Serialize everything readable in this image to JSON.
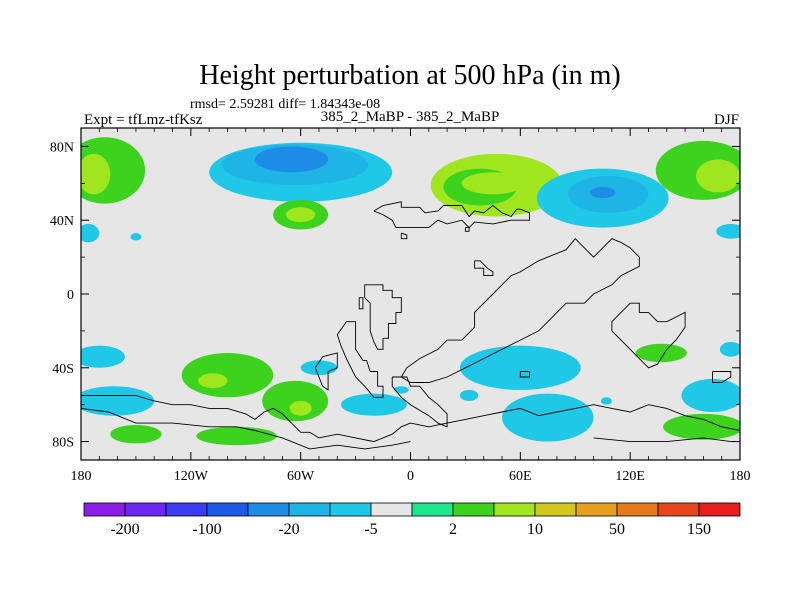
{
  "chart_data": {
    "type": "heatmap",
    "title": "Height perturbation at 500 hPa (in m)",
    "stats_line": "rmsd= 2.59281 diff= 1.84343e-08",
    "left_label": "Expt = tfLmz-tfKsz",
    "center_label": "385_2_MaBP - 385_2_MaBP",
    "right_label": "DJF",
    "xlim": [
      -180,
      180
    ],
    "ylim": [
      -90,
      90
    ],
    "x_ticks": [
      {
        "value": -180,
        "label": "180"
      },
      {
        "value": -120,
        "label": "120W"
      },
      {
        "value": -60,
        "label": "60W"
      },
      {
        "value": 0,
        "label": "0"
      },
      {
        "value": 60,
        "label": "60E"
      },
      {
        "value": 120,
        "label": "120E"
      },
      {
        "value": 180,
        "label": "180"
      }
    ],
    "y_ticks": [
      {
        "value": 80,
        "label": "80N"
      },
      {
        "value": 40,
        "label": "40N"
      },
      {
        "value": 0,
        "label": "0"
      },
      {
        "value": -40,
        "label": "40S"
      },
      {
        "value": -80,
        "label": "80S"
      }
    ],
    "colorbar": {
      "colors": [
        "#8a1ee6",
        "#6a28f0",
        "#3c3cf0",
        "#1e5ae6",
        "#1e8ce6",
        "#1eb4e6",
        "#1ec8e6",
        "#e6e6e6",
        "#1ee68c",
        "#3cd21e",
        "#a0e61e",
        "#d2c81e",
        "#e6a01e",
        "#e6781e",
        "#e6461e",
        "#e61e1e"
      ],
      "tick_labels": [
        "-200",
        "-100",
        "-20",
        "-5",
        "2",
        "10",
        "50",
        "150"
      ]
    },
    "neutral_range": [
      -2,
      2
    ],
    "regions": [
      {
        "level": 2,
        "lon": 47,
        "lat": 59,
        "rlon": 36,
        "rlat": 17
      },
      {
        "level": 1,
        "lon": 38,
        "lat": 58,
        "rlon": 20,
        "rlat": 10
      },
      {
        "level": 2,
        "lon": 45,
        "lat": 60,
        "rlon": 17,
        "rlat": 6
      },
      {
        "level": 1,
        "lon": -167,
        "lat": 67,
        "rlon": 22,
        "rlat": 18
      },
      {
        "level": 2,
        "lon": -173,
        "lat": 65,
        "rlon": 9,
        "rlat": 11
      },
      {
        "level": 1,
        "lon": 160,
        "lat": 67,
        "rlon": 26,
        "rlat": 16
      },
      {
        "level": 2,
        "lon": 168,
        "lat": 64,
        "rlon": 12,
        "rlat": 9
      },
      {
        "level": -1,
        "lon": -60,
        "lat": 66,
        "rlon": 50,
        "rlat": 16
      },
      {
        "level": -2,
        "lon": -63,
        "lat": 70,
        "rlon": 40,
        "rlat": 11
      },
      {
        "level": -3,
        "lon": -65,
        "lat": 73,
        "rlon": 20,
        "rlat": 7
      },
      {
        "level": 1,
        "lon": -60,
        "lat": 43,
        "rlon": 15,
        "rlat": 8
      },
      {
        "level": 2,
        "lon": -60,
        "lat": 43,
        "rlon": 8,
        "rlat": 4
      },
      {
        "level": -1,
        "lon": 105,
        "lat": 52,
        "rlon": 36,
        "rlat": 16
      },
      {
        "level": -2,
        "lon": 108,
        "lat": 54,
        "rlon": 22,
        "rlat": 10
      },
      {
        "level": -3,
        "lon": 105,
        "lat": 55,
        "rlon": 7,
        "rlat": 3
      },
      {
        "level": -1,
        "lon": 175,
        "lat": 34,
        "rlon": 8,
        "rlat": 4
      },
      {
        "level": -1,
        "lon": -176,
        "lat": 33,
        "rlon": 6,
        "rlat": 5
      },
      {
        "level": -1,
        "lon": -150,
        "lat": 31,
        "rlon": 3,
        "rlat": 2
      },
      {
        "level": -1,
        "lon": -170,
        "lat": -34,
        "rlon": 14,
        "rlat": 6
      },
      {
        "level": 1,
        "lon": -100,
        "lat": -44,
        "rlon": 25,
        "rlat": 12
      },
      {
        "level": 2,
        "lon": -108,
        "lat": -47,
        "rlon": 8,
        "rlat": 4
      },
      {
        "level": -1,
        "lon": -162,
        "lat": -58,
        "rlon": 22,
        "rlat": 8
      },
      {
        "level": 1,
        "lon": -63,
        "lat": -58,
        "rlon": 18,
        "rlat": 11
      },
      {
        "level": 2,
        "lon": -60,
        "lat": -62,
        "rlon": 6,
        "rlat": 4
      },
      {
        "level": 1,
        "lon": -150,
        "lat": -76,
        "rlon": 14,
        "rlat": 5
      },
      {
        "level": 1,
        "lon": -95,
        "lat": -77,
        "rlon": 22,
        "rlat": 5
      },
      {
        "level": -1,
        "lon": -20,
        "lat": -60,
        "rlon": 18,
        "rlat": 6
      },
      {
        "level": -1,
        "lon": -50,
        "lat": -40,
        "rlon": 10,
        "rlat": 4
      },
      {
        "level": -1,
        "lon": 60,
        "lat": -40,
        "rlon": 33,
        "rlat": 12
      },
      {
        "level": -1,
        "lon": 75,
        "lat": -67,
        "rlon": 25,
        "rlat": 13
      },
      {
        "level": 1,
        "lon": 137,
        "lat": -32,
        "rlon": 14,
        "rlat": 5
      },
      {
        "level": -1,
        "lon": 165,
        "lat": -55,
        "rlon": 17,
        "rlat": 9
      },
      {
        "level": 1,
        "lon": 160,
        "lat": -72,
        "rlon": 22,
        "rlat": 7
      },
      {
        "level": -1,
        "lon": 107,
        "lat": -58,
        "rlon": 3,
        "rlat": 2
      },
      {
        "level": -1,
        "lon": 175,
        "lat": -30,
        "rlon": 6,
        "rlat": 4
      },
      {
        "level": -1,
        "lon": 32,
        "lat": -55,
        "rlon": 5,
        "rlat": 3
      },
      {
        "level": -1,
        "lon": -5,
        "lat": -52,
        "rlon": 4,
        "rlat": 2
      }
    ],
    "coastlines": [
      [
        [
          -20,
          45
        ],
        [
          -15,
          48
        ],
        [
          -5,
          50
        ],
        [
          -5,
          47
        ],
        [
          5,
          47
        ],
        [
          8,
          44
        ],
        [
          15,
          45
        ],
        [
          18,
          48
        ],
        [
          28,
          48
        ],
        [
          32,
          42
        ],
        [
          35,
          45
        ],
        [
          40,
          44
        ],
        [
          45,
          48
        ],
        [
          50,
          44
        ],
        [
          55,
          42
        ],
        [
          58,
          46
        ],
        [
          60,
          46
        ],
        [
          65,
          44
        ],
        [
          65,
          40
        ],
        [
          55,
          40
        ],
        [
          45,
          38
        ],
        [
          35,
          39
        ],
        [
          32,
          36
        ],
        [
          28,
          40
        ],
        [
          20,
          38
        ],
        [
          15,
          40
        ],
        [
          10,
          36
        ],
        [
          -3,
          36
        ],
        [
          -8,
          36
        ],
        [
          -10,
          40
        ],
        [
          -15,
          43
        ],
        [
          -20,
          45
        ]
      ],
      [
        [
          -5,
          33
        ],
        [
          -5,
          30
        ],
        [
          -2,
          30
        ],
        [
          -2,
          32
        ],
        [
          -5,
          33
        ]
      ],
      [
        [
          30,
          36
        ],
        [
          32,
          36
        ],
        [
          32,
          34
        ],
        [
          30,
          34
        ],
        [
          30,
          36
        ]
      ],
      [
        [
          35,
          18
        ],
        [
          35,
          14
        ],
        [
          40,
          14
        ],
        [
          40,
          10
        ],
        [
          45,
          10
        ],
        [
          45,
          12
        ],
        [
          42,
          14
        ],
        [
          38,
          18
        ],
        [
          35,
          18
        ]
      ],
      [
        [
          -22,
          5
        ],
        [
          -15,
          5
        ],
        [
          -15,
          2
        ],
        [
          -10,
          2
        ],
        [
          -10,
          -2
        ],
        [
          -5,
          -2
        ],
        [
          -5,
          -10
        ],
        [
          -8,
          -10
        ],
        [
          -8,
          -16
        ],
        [
          -12,
          -16
        ],
        [
          -12,
          -24
        ],
        [
          -15,
          -24
        ],
        [
          -15,
          -30
        ],
        [
          -18,
          -30
        ],
        [
          -20,
          -26
        ],
        [
          -22,
          -20
        ],
        [
          -22,
          -5
        ],
        [
          -25,
          -2
        ],
        [
          -25,
          5
        ],
        [
          -22,
          5
        ]
      ],
      [
        [
          -28,
          -2
        ],
        [
          -26,
          -2
        ],
        [
          -26,
          -8
        ],
        [
          -28,
          -8
        ],
        [
          -28,
          -2
        ]
      ],
      [
        [
          -35,
          -15
        ],
        [
          -30,
          -15
        ],
        [
          -30,
          -30
        ],
        [
          -26,
          -36
        ],
        [
          -24,
          -36
        ],
        [
          -22,
          -42
        ],
        [
          -18,
          -42
        ],
        [
          -18,
          -50
        ],
        [
          -15,
          -50
        ],
        [
          -15,
          -56
        ],
        [
          -20,
          -56
        ],
        [
          -25,
          -50
        ],
        [
          -30,
          -45
        ],
        [
          -35,
          -35
        ],
        [
          -38,
          -28
        ],
        [
          -40,
          -22
        ],
        [
          -35,
          -15
        ]
      ],
      [
        [
          -48,
          -34
        ],
        [
          -40,
          -32
        ],
        [
          -40,
          -40
        ],
        [
          -45,
          -42
        ],
        [
          -45,
          -52
        ],
        [
          -48,
          -50
        ],
        [
          -52,
          -40
        ],
        [
          -48,
          -34
        ]
      ],
      [
        [
          -10,
          -45
        ],
        [
          -2,
          -45
        ],
        [
          0,
          -50
        ],
        [
          5,
          -50
        ],
        [
          10,
          -56
        ],
        [
          15,
          -60
        ],
        [
          20,
          -65
        ],
        [
          20,
          -72
        ],
        [
          15,
          -70
        ],
        [
          10,
          -66
        ],
        [
          0,
          -60
        ],
        [
          -5,
          -56
        ],
        [
          -10,
          -50
        ],
        [
          -10,
          -45
        ]
      ],
      [
        [
          -5,
          -45
        ],
        [
          -2,
          -40
        ],
        [
          5,
          -35
        ],
        [
          15,
          -30
        ],
        [
          20,
          -25
        ],
        [
          28,
          -25
        ],
        [
          35,
          -18
        ],
        [
          35,
          -10
        ],
        [
          40,
          -5
        ],
        [
          45,
          0
        ],
        [
          50,
          5
        ],
        [
          55,
          10
        ],
        [
          60,
          12
        ],
        [
          65,
          15
        ],
        [
          70,
          18
        ],
        [
          75,
          20
        ],
        [
          80,
          22
        ],
        [
          85,
          24
        ],
        [
          90,
          30
        ],
        [
          95,
          25
        ],
        [
          100,
          20
        ],
        [
          105,
          25
        ],
        [
          110,
          30
        ],
        [
          115,
          28
        ],
        [
          120,
          25
        ],
        [
          125,
          20
        ],
        [
          125,
          15
        ],
        [
          115,
          10
        ],
        [
          110,
          5
        ],
        [
          100,
          0
        ],
        [
          95,
          -5
        ],
        [
          85,
          -5
        ],
        [
          80,
          -10
        ],
        [
          75,
          -15
        ],
        [
          70,
          -20
        ],
        [
          60,
          -25
        ],
        [
          50,
          -30
        ],
        [
          40,
          -35
        ],
        [
          30,
          -40
        ],
        [
          20,
          -45
        ],
        [
          10,
          -48
        ],
        [
          0,
          -48
        ],
        [
          -5,
          -45
        ]
      ],
      [
        [
          120,
          -5
        ],
        [
          125,
          -5
        ],
        [
          125,
          -10
        ],
        [
          130,
          -10
        ],
        [
          135,
          -15
        ],
        [
          140,
          -15
        ],
        [
          150,
          -10
        ],
        [
          150,
          -18
        ],
        [
          145,
          -25
        ],
        [
          140,
          -30
        ],
        [
          135,
          -38
        ],
        [
          130,
          -40
        ],
        [
          125,
          -35
        ],
        [
          120,
          -30
        ],
        [
          115,
          -25
        ],
        [
          110,
          -20
        ],
        [
          110,
          -15
        ],
        [
          115,
          -10
        ],
        [
          120,
          -5
        ]
      ],
      [
        [
          60,
          -42
        ],
        [
          65,
          -42
        ],
        [
          65,
          -45
        ],
        [
          60,
          -45
        ],
        [
          60,
          -42
        ]
      ],
      [
        [
          165,
          -42
        ],
        [
          175,
          -42
        ],
        [
          175,
          -45
        ],
        [
          170,
          -48
        ],
        [
          165,
          -48
        ],
        [
          165,
          -42
        ]
      ],
      [
        [
          -180,
          -55
        ],
        [
          -150,
          -55
        ],
        [
          -140,
          -58
        ],
        [
          -130,
          -60
        ],
        [
          -120,
          -60
        ],
        [
          -110,
          -62
        ],
        [
          -100,
          -62
        ],
        [
          -90,
          -65
        ],
        [
          -85,
          -68
        ],
        [
          -80,
          -64
        ],
        [
          -75,
          -62
        ],
        [
          -70,
          -65
        ],
        [
          -65,
          -70
        ],
        [
          -60,
          -75
        ],
        [
          -55,
          -75
        ],
        [
          -50,
          -78
        ],
        [
          -40,
          -76
        ],
        [
          -30,
          -78
        ],
        [
          -20,
          -80
        ],
        [
          -10,
          -76
        ],
        [
          -5,
          -72
        ],
        [
          0,
          -70
        ],
        [
          10,
          -72
        ],
        [
          20,
          -70
        ],
        [
          30,
          -68
        ],
        [
          40,
          -66
        ],
        [
          50,
          -64
        ],
        [
          60,
          -62
        ],
        [
          70,
          -66
        ],
        [
          80,
          -64
        ],
        [
          90,
          -62
        ],
        [
          100,
          -60
        ],
        [
          110,
          -62
        ],
        [
          120,
          -64
        ],
        [
          130,
          -60
        ],
        [
          140,
          -62
        ],
        [
          150,
          -66
        ],
        [
          160,
          -68
        ],
        [
          170,
          -72
        ],
        [
          180,
          -74
        ]
      ],
      [
        [
          -180,
          -62
        ],
        [
          -165,
          -64
        ],
        [
          -150,
          -70
        ],
        [
          -130,
          -70
        ],
        [
          -110,
          -72
        ],
        [
          -95,
          -72
        ],
        [
          -85,
          -74
        ],
        [
          -70,
          -78
        ],
        [
          -55,
          -84
        ],
        [
          -40,
          -82
        ],
        [
          -25,
          -84
        ],
        [
          -10,
          -82
        ],
        [
          0,
          -80
        ]
      ],
      [
        [
          100,
          -78
        ],
        [
          120,
          -80
        ],
        [
          140,
          -80
        ],
        [
          160,
          -78
        ],
        [
          175,
          -80
        ],
        [
          180,
          -80
        ]
      ]
    ]
  }
}
